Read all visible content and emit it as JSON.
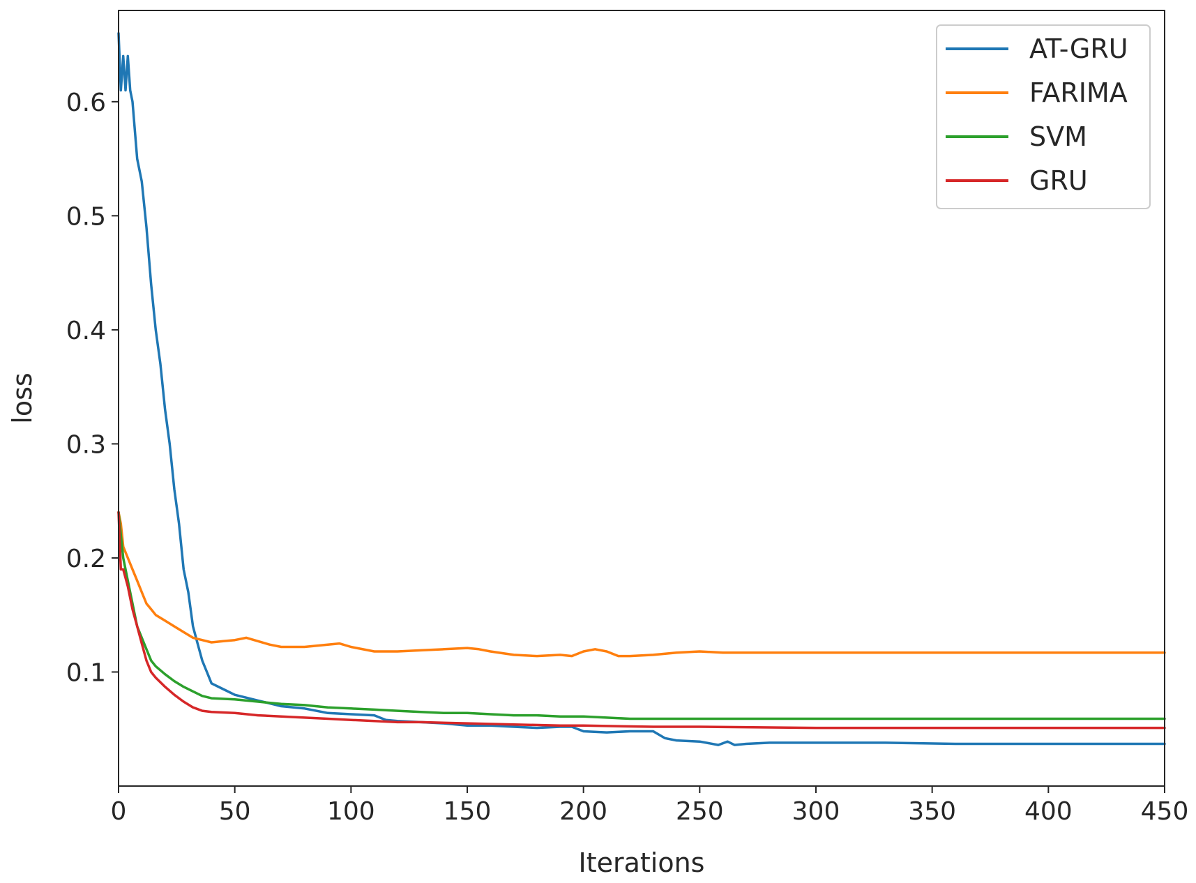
{
  "chart_data": {
    "type": "line",
    "title": "",
    "xlabel": "Iterations",
    "ylabel": "loss",
    "xlim": [
      0,
      450
    ],
    "ylim": [
      0.0,
      0.68
    ],
    "xticks": [
      0,
      50,
      100,
      150,
      200,
      250,
      300,
      350,
      400,
      450
    ],
    "xtick_labels": [
      "0",
      "50",
      "100",
      "150",
      "200",
      "250",
      "300",
      "350",
      "400",
      "450"
    ],
    "yticks": [
      0.1,
      0.2,
      0.3,
      0.4,
      0.5,
      0.6
    ],
    "ytick_labels": [
      "0.1",
      "0.2",
      "0.3",
      "0.4",
      "0.5",
      "0.6"
    ],
    "grid": false,
    "legend_position": "top-right",
    "series": [
      {
        "name": "AT-GRU",
        "color": "#1f77b4",
        "x": [
          0,
          1,
          2,
          3,
          4,
          5,
          6,
          8,
          10,
          12,
          14,
          16,
          18,
          20,
          22,
          24,
          26,
          28,
          30,
          32,
          34,
          36,
          38,
          40,
          45,
          50,
          60,
          70,
          80,
          90,
          100,
          110,
          115,
          120,
          130,
          140,
          150,
          160,
          170,
          180,
          190,
          195,
          200,
          210,
          220,
          230,
          235,
          240,
          250,
          258,
          262,
          265,
          270,
          280,
          300,
          330,
          360,
          400,
          450
        ],
        "y": [
          0.66,
          0.61,
          0.64,
          0.61,
          0.64,
          0.61,
          0.6,
          0.55,
          0.53,
          0.49,
          0.44,
          0.4,
          0.37,
          0.33,
          0.3,
          0.26,
          0.23,
          0.19,
          0.17,
          0.14,
          0.125,
          0.11,
          0.1,
          0.09,
          0.085,
          0.08,
          0.075,
          0.07,
          0.068,
          0.064,
          0.063,
          0.062,
          0.058,
          0.057,
          0.056,
          0.055,
          0.053,
          0.053,
          0.052,
          0.051,
          0.052,
          0.052,
          0.048,
          0.047,
          0.048,
          0.048,
          0.042,
          0.04,
          0.039,
          0.036,
          0.039,
          0.036,
          0.037,
          0.038,
          0.038,
          0.038,
          0.037,
          0.037,
          0.037
        ]
      },
      {
        "name": "FARIMA",
        "color": "#ff7f0e",
        "x": [
          0,
          1,
          2,
          4,
          6,
          8,
          10,
          12,
          14,
          16,
          20,
          24,
          28,
          32,
          36,
          40,
          45,
          50,
          55,
          60,
          65,
          70,
          80,
          90,
          95,
          100,
          110,
          120,
          130,
          140,
          150,
          155,
          160,
          170,
          180,
          190,
          195,
          200,
          205,
          210,
          215,
          220,
          230,
          240,
          250,
          260,
          300,
          350,
          400,
          450
        ],
        "y": [
          0.24,
          0.23,
          0.21,
          0.2,
          0.19,
          0.18,
          0.17,
          0.16,
          0.155,
          0.15,
          0.145,
          0.14,
          0.135,
          0.13,
          0.128,
          0.126,
          0.127,
          0.128,
          0.13,
          0.127,
          0.124,
          0.122,
          0.122,
          0.124,
          0.125,
          0.122,
          0.118,
          0.118,
          0.119,
          0.12,
          0.121,
          0.12,
          0.118,
          0.115,
          0.114,
          0.115,
          0.114,
          0.118,
          0.12,
          0.118,
          0.114,
          0.114,
          0.115,
          0.117,
          0.118,
          0.117,
          0.117,
          0.117,
          0.117,
          0.117
        ]
      },
      {
        "name": "SVM",
        "color": "#2ca02c",
        "x": [
          0,
          1,
          2,
          4,
          6,
          8,
          10,
          12,
          14,
          16,
          20,
          24,
          28,
          32,
          36,
          40,
          50,
          60,
          70,
          80,
          90,
          100,
          110,
          120,
          130,
          140,
          150,
          160,
          170,
          180,
          190,
          200,
          210,
          220,
          250,
          300,
          350,
          400,
          450
        ],
        "y": [
          0.24,
          0.22,
          0.2,
          0.18,
          0.16,
          0.14,
          0.13,
          0.12,
          0.11,
          0.105,
          0.098,
          0.092,
          0.087,
          0.083,
          0.079,
          0.077,
          0.076,
          0.074,
          0.072,
          0.071,
          0.069,
          0.068,
          0.067,
          0.066,
          0.065,
          0.064,
          0.064,
          0.063,
          0.062,
          0.062,
          0.061,
          0.061,
          0.06,
          0.059,
          0.059,
          0.059,
          0.059,
          0.059,
          0.059
        ]
      },
      {
        "name": "GRU",
        "color": "#d62728",
        "x": [
          0,
          1,
          2,
          4,
          6,
          8,
          10,
          12,
          14,
          16,
          20,
          24,
          28,
          32,
          36,
          40,
          50,
          60,
          70,
          80,
          90,
          100,
          110,
          120,
          130,
          150,
          170,
          190,
          200,
          230,
          250,
          300,
          350,
          400,
          450
        ],
        "y": [
          0.24,
          0.19,
          0.19,
          0.175,
          0.155,
          0.14,
          0.125,
          0.11,
          0.1,
          0.095,
          0.087,
          0.08,
          0.074,
          0.069,
          0.066,
          0.065,
          0.064,
          0.062,
          0.061,
          0.06,
          0.059,
          0.058,
          0.057,
          0.056,
          0.056,
          0.055,
          0.054,
          0.053,
          0.053,
          0.052,
          0.052,
          0.051,
          0.051,
          0.051,
          0.051
        ]
      }
    ]
  }
}
